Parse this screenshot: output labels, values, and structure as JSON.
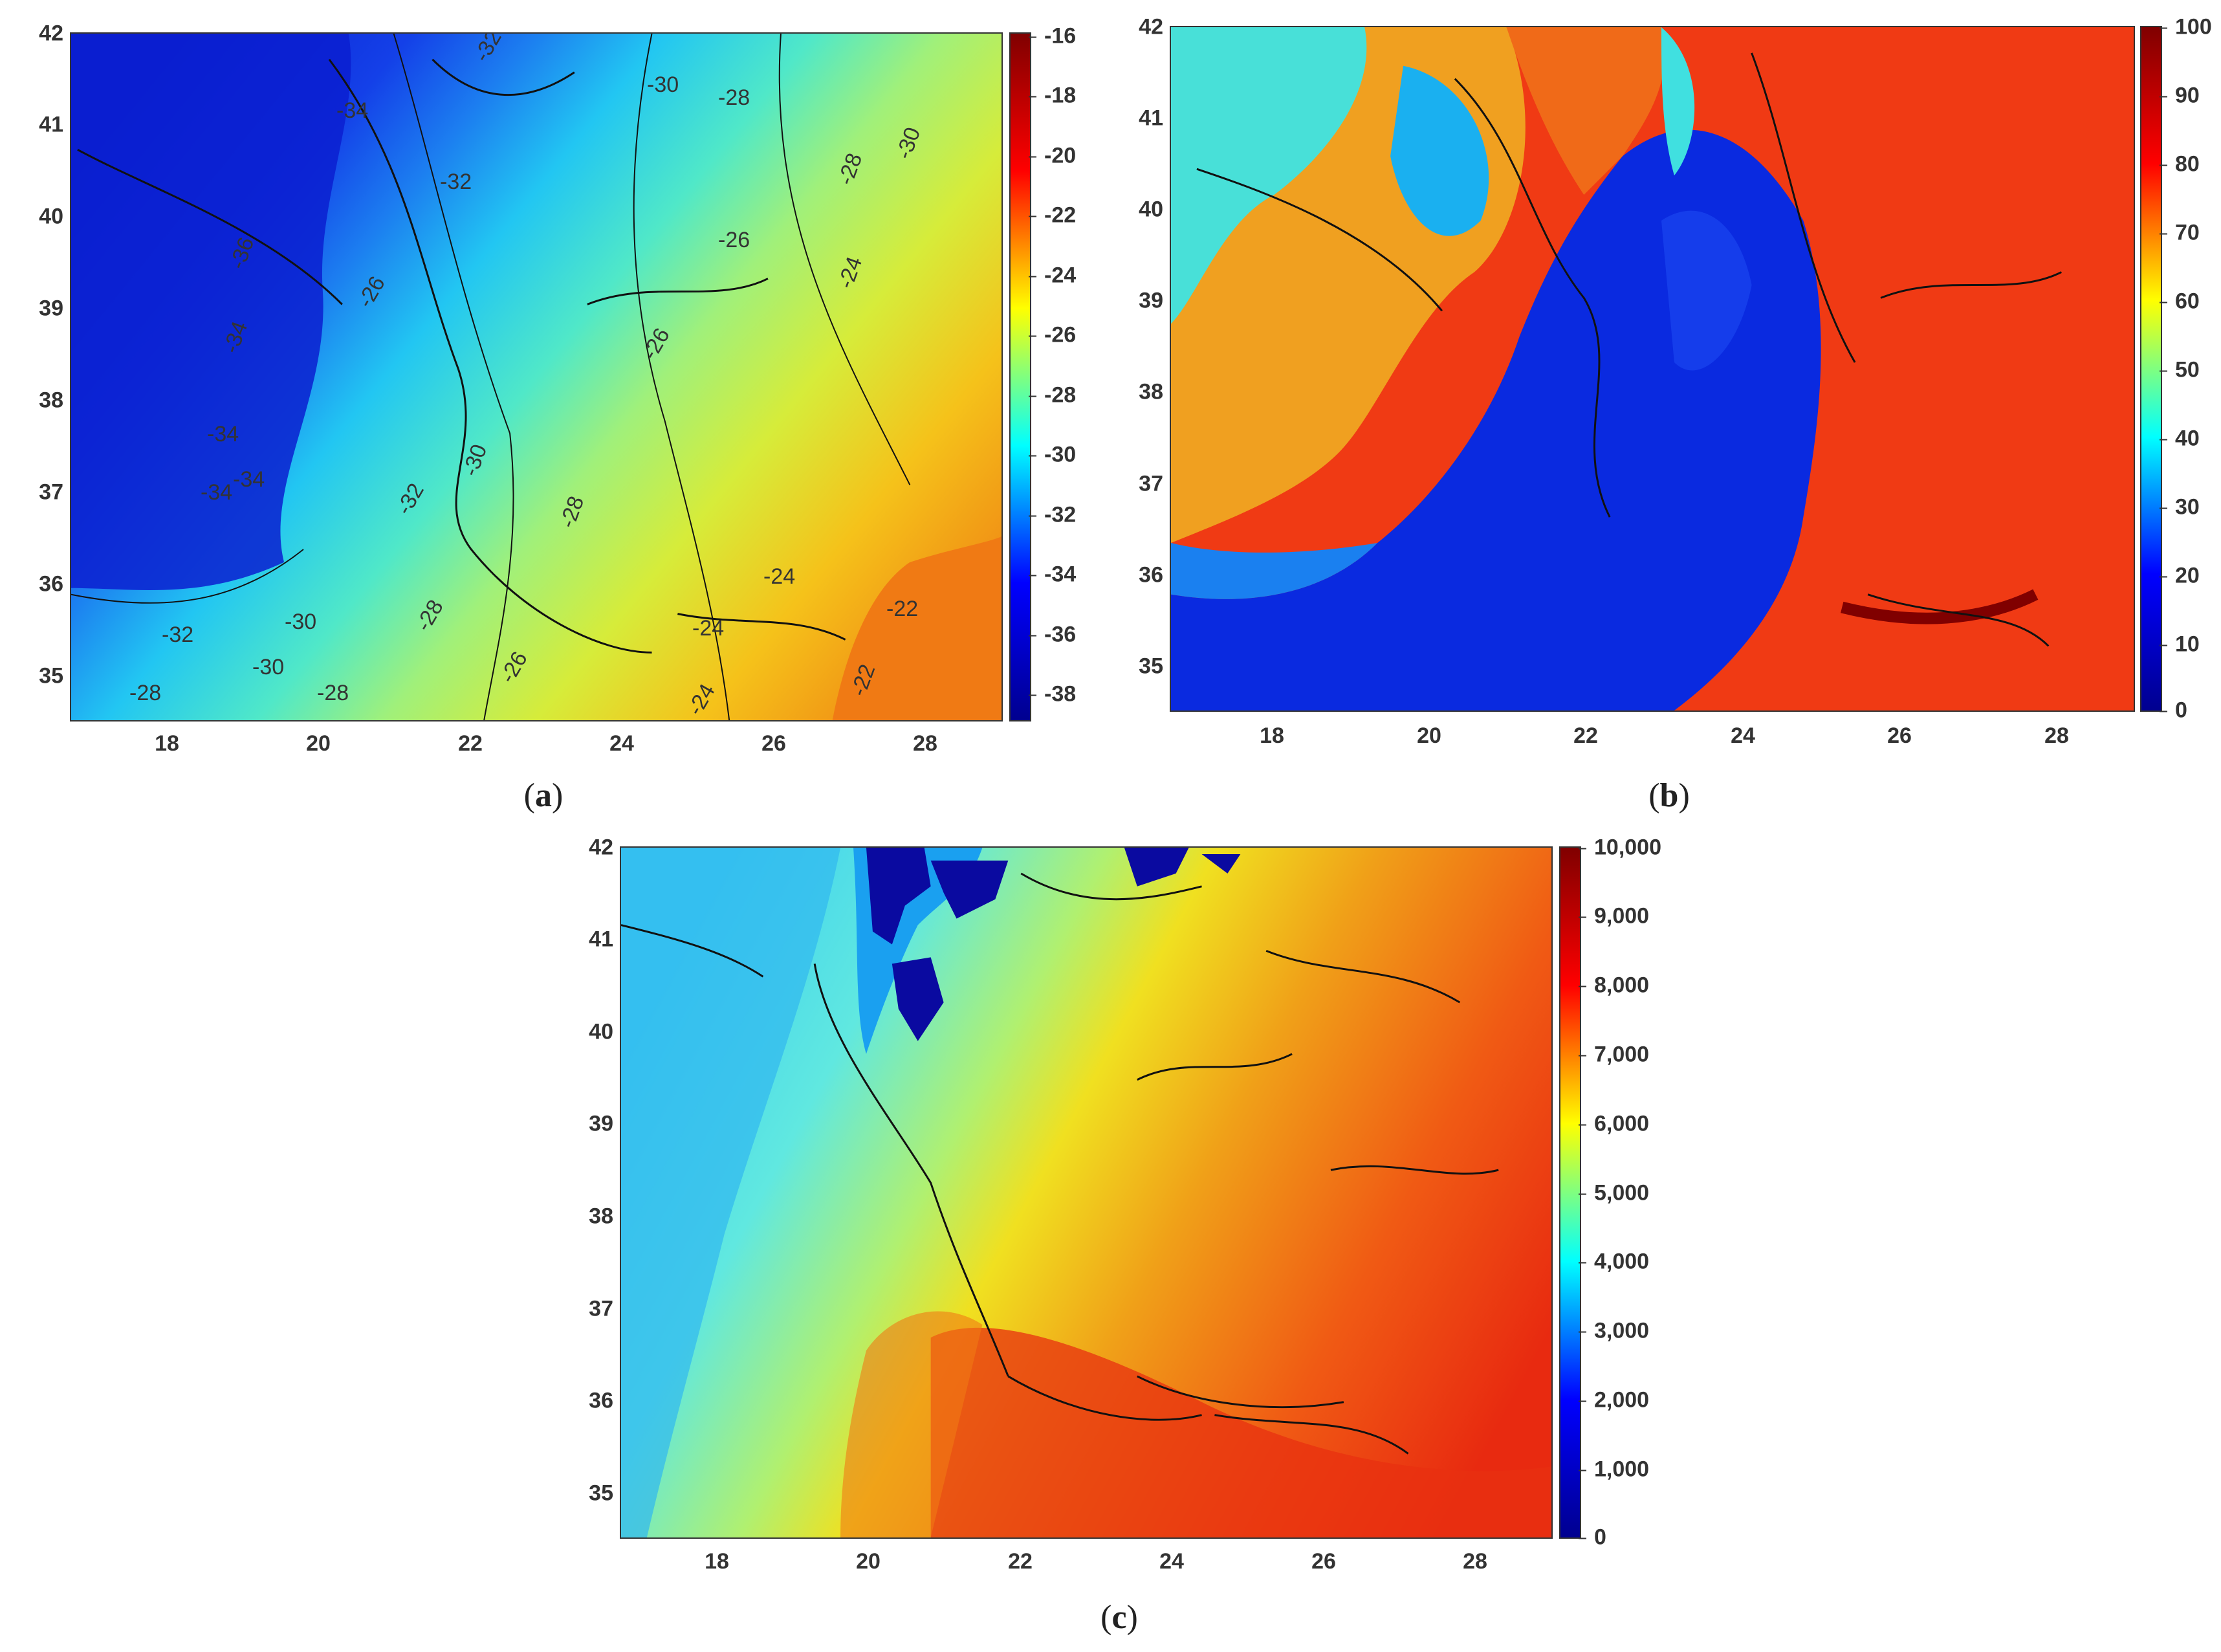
{
  "panels": [
    {
      "caption_open": "(",
      "caption_letter": "a",
      "caption_close": ")",
      "yticks": [
        "42",
        "41",
        "40",
        "39",
        "38",
        "37",
        "36",
        "35"
      ],
      "xticks": [
        "18",
        "20",
        "22",
        "24",
        "26",
        "28"
      ],
      "colorbar": {
        "ticks": [
          "-16",
          "-18",
          "-20",
          "-22",
          "-24",
          "-26",
          "-28",
          "-30",
          "-32",
          "-34",
          "-36",
          "-38"
        ],
        "range": [
          -39,
          -16
        ],
        "colormap": "jet"
      },
      "contour_labels": [
        "-32",
        "-34",
        "-30",
        "-28",
        "-26",
        "-26",
        "-24",
        "-24",
        "-24",
        "-22",
        "-22",
        "-36",
        "-34",
        "-34",
        "-32",
        "-30",
        "-28",
        "-28",
        "-30",
        "-32",
        "-30",
        "-28",
        "-26",
        "-26",
        "-24",
        "-34",
        "-34",
        "-32",
        "-30",
        "-28",
        "-28"
      ]
    },
    {
      "caption_open": "(",
      "caption_letter": "b",
      "caption_close": ")",
      "yticks": [
        "42",
        "41",
        "40",
        "39",
        "38",
        "37",
        "36",
        "35"
      ],
      "xticks": [
        "18",
        "20",
        "22",
        "24",
        "26",
        "28"
      ],
      "colorbar": {
        "ticks": [
          "100",
          "90",
          "80",
          "70",
          "60",
          "50",
          "40",
          "30",
          "20",
          "10",
          "0"
        ],
        "range": [
          0,
          100
        ],
        "colormap": "jet"
      }
    },
    {
      "caption_open": "(",
      "caption_letter": "c",
      "caption_close": ")",
      "yticks": [
        "42",
        "41",
        "40",
        "39",
        "38",
        "37",
        "36",
        "35"
      ],
      "xticks": [
        "18",
        "20",
        "22",
        "24",
        "26",
        "28"
      ],
      "colorbar": {
        "ticks": [
          "10,000",
          "9,000",
          "8,000",
          "7,000",
          "6,000",
          "5,000",
          "4,000",
          "3,000",
          "2,000",
          "1,000",
          "0"
        ],
        "range": [
          0,
          10000
        ],
        "colormap": "jet"
      }
    }
  ],
  "map_extent": {
    "lon": [
      16.7,
      29.0
    ],
    "lat": [
      34.5,
      42.0
    ]
  }
}
